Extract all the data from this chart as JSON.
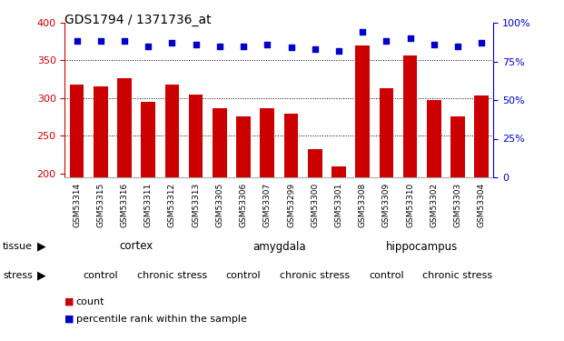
{
  "title": "GDS1794 / 1371736_at",
  "samples": [
    "GSM53314",
    "GSM53315",
    "GSM53316",
    "GSM53311",
    "GSM53312",
    "GSM53313",
    "GSM53305",
    "GSM53306",
    "GSM53307",
    "GSM53299",
    "GSM53300",
    "GSM53301",
    "GSM53308",
    "GSM53309",
    "GSM53310",
    "GSM53302",
    "GSM53303",
    "GSM53304"
  ],
  "counts": [
    318,
    315,
    326,
    295,
    318,
    305,
    287,
    276,
    287,
    280,
    232,
    210,
    370,
    313,
    356,
    298,
    276,
    304
  ],
  "percentile_ranks": [
    88,
    88,
    88,
    85,
    87,
    86,
    85,
    85,
    86,
    84,
    83,
    82,
    94,
    88,
    90,
    86,
    85,
    87
  ],
  "ylim_left": [
    195,
    400
  ],
  "ylim_right": [
    0,
    100
  ],
  "yticks_left": [
    200,
    250,
    300,
    350,
    400
  ],
  "yticks_right": [
    0,
    25,
    50,
    75,
    100
  ],
  "bar_color": "#cc0000",
  "dot_color": "#0000cc",
  "grid_color": "#888888",
  "tissue_groups": [
    {
      "label": "cortex",
      "start": 0,
      "end": 6,
      "color": "#ccffcc"
    },
    {
      "label": "amygdala",
      "start": 6,
      "end": 12,
      "color": "#aaffaa"
    },
    {
      "label": "hippocampus",
      "start": 12,
      "end": 18,
      "color": "#44ee44"
    }
  ],
  "stress_groups": [
    {
      "label": "control",
      "start": 0,
      "end": 3,
      "color": "#ffaaff"
    },
    {
      "label": "chronic stress",
      "start": 3,
      "end": 6,
      "color": "#ee44ee"
    },
    {
      "label": "control",
      "start": 6,
      "end": 9,
      "color": "#ffaaff"
    },
    {
      "label": "chronic stress",
      "start": 9,
      "end": 12,
      "color": "#ee44ee"
    },
    {
      "label": "control",
      "start": 12,
      "end": 15,
      "color": "#ffaaff"
    },
    {
      "label": "chronic stress",
      "start": 15,
      "end": 18,
      "color": "#ee44ee"
    }
  ],
  "tissue_label": "tissue",
  "stress_label": "stress",
  "left_axis_color": "#cc0000",
  "right_axis_color": "#0000cc",
  "bg_color": "#ffffff",
  "xticklabel_bg": "#cccccc",
  "border_color": "#aaaaaa"
}
